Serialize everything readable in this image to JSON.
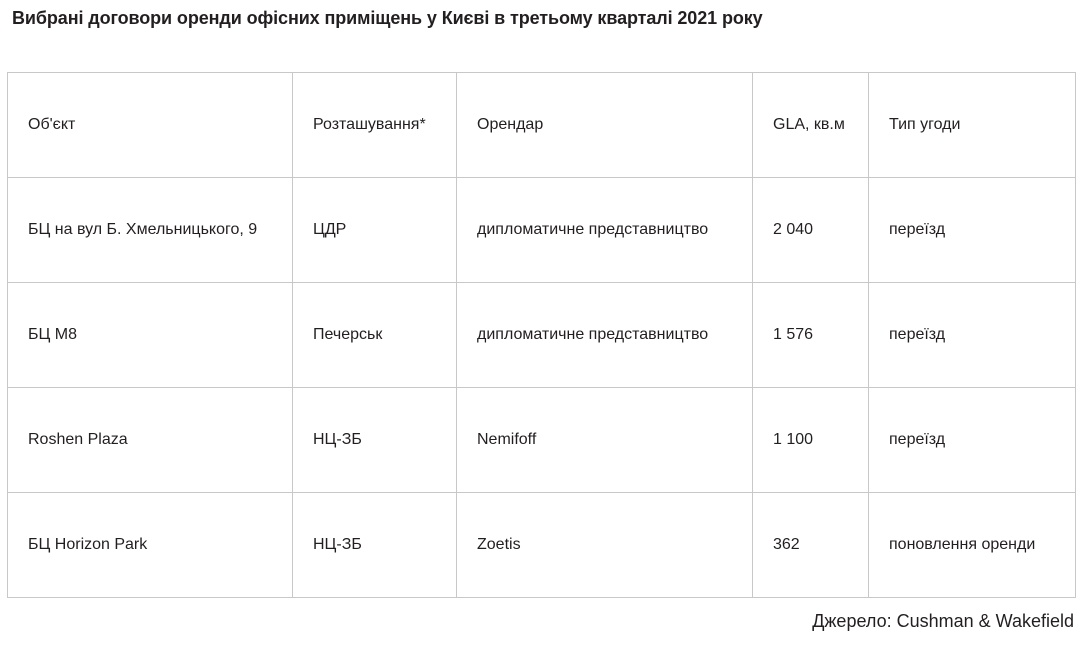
{
  "title": "Вибрані договори оренди офісних приміщень у Києві в третьому кварталі 2021 року",
  "table": {
    "headers": [
      "Об'єкт",
      "Розташування*",
      "Орендар",
      "GLA, кв.м",
      "Тип угоди"
    ],
    "rows": [
      [
        "БЦ на вул Б. Хмельницького, 9",
        "ЦДР",
        "дипломатичне представництво",
        "2 040",
        "переїзд"
      ],
      [
        "БЦ М8",
        "Печерськ",
        "дипломатичне представництво",
        "1 576",
        "переїзд"
      ],
      [
        "Roshen Plaza",
        "НЦ-ЗБ",
        "Nemifoff",
        "1 100",
        "переїзд"
      ],
      [
        "БЦ Horizon Park",
        "НЦ-ЗБ",
        "Zoetis",
        "362",
        "поновлення оренди"
      ]
    ]
  },
  "source": "Джерело: Cushman & Wakefield"
}
